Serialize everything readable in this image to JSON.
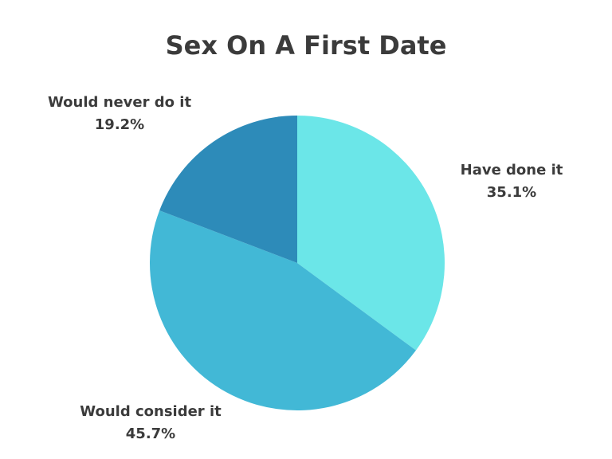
{
  "chart_data": {
    "type": "pie",
    "title": "Sex On A First Date",
    "slices": [
      {
        "label": "Have done it",
        "value": 35.1,
        "display": "35.1%",
        "color": "#6be6e8"
      },
      {
        "label": "Would consider it",
        "value": 45.7,
        "display": "45.7%",
        "color": "#42b8d6"
      },
      {
        "label": "Would never do it",
        "value": 19.2,
        "display": "19.2%",
        "color": "#2d8bb9"
      }
    ],
    "start_angle": "12 o'clock",
    "direction": "clockwise",
    "legend": "none"
  }
}
